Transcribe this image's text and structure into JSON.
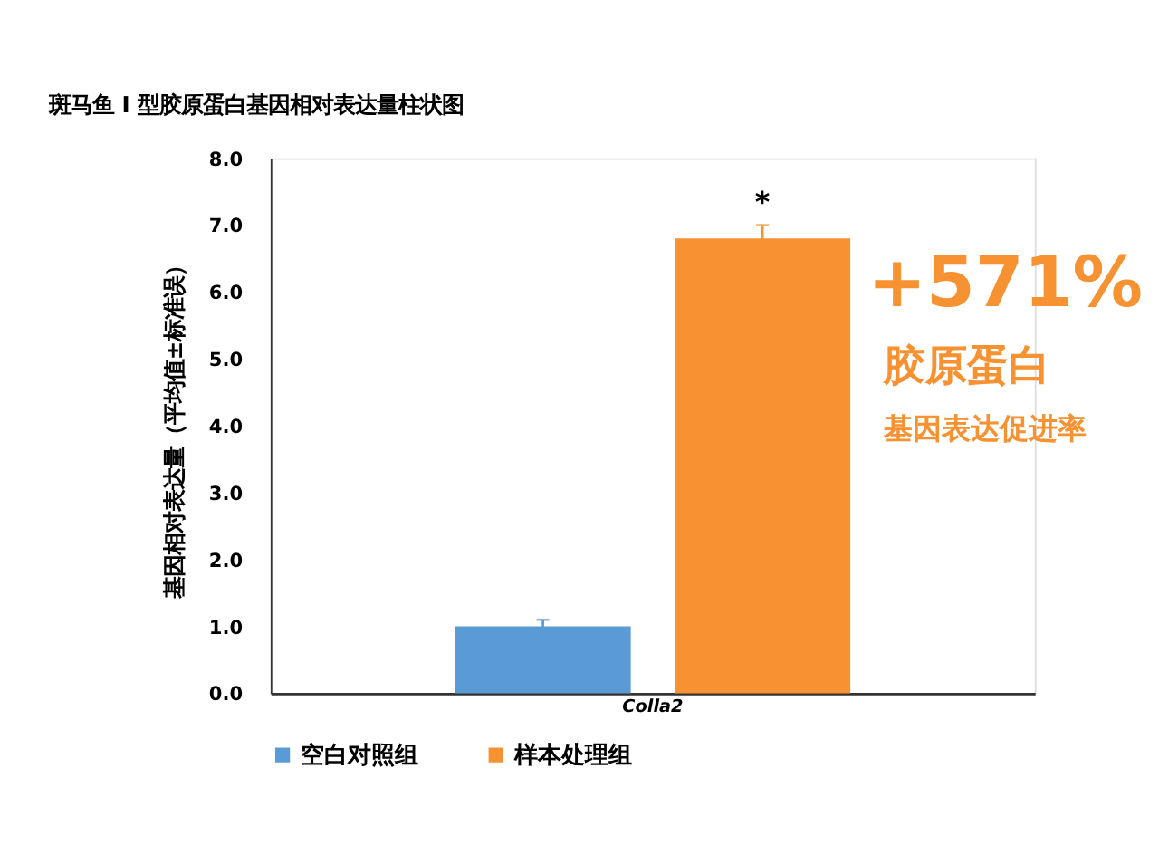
{
  "chart_data": {
    "type": "bar",
    "title": "斑马鱼 I 型胶原蛋白基因相对表达量柱状图",
    "ylabel": "基因相对表达量（平均值±标准误）",
    "categories": [
      "Colla2"
    ],
    "series": [
      {
        "name": "空白对照组",
        "color": "#5b9bd5",
        "values": [
          1.0
        ],
        "errors": [
          0.1
        ]
      },
      {
        "name": "样本处理组",
        "color": "#f79232",
        "values": [
          6.8
        ],
        "errors": [
          0.2
        ]
      }
    ],
    "ylim": [
      0,
      8
    ],
    "yticks": [
      {
        "value": 0,
        "label": "0.0"
      },
      {
        "value": 1,
        "label": "1.0"
      },
      {
        "value": 2,
        "label": "2.0"
      },
      {
        "value": 3,
        "label": "3.0"
      },
      {
        "value": 4,
        "label": "4.0"
      },
      {
        "value": 5,
        "label": "5.0"
      },
      {
        "value": 6,
        "label": "6.0"
      },
      {
        "value": 7,
        "label": "7.0"
      },
      {
        "value": 8,
        "label": "8.0"
      }
    ],
    "annotations": [
      "*",
      "+571%",
      "胶原蛋白",
      "基因表达促进率"
    ],
    "grid": false,
    "legend": "bottom"
  }
}
